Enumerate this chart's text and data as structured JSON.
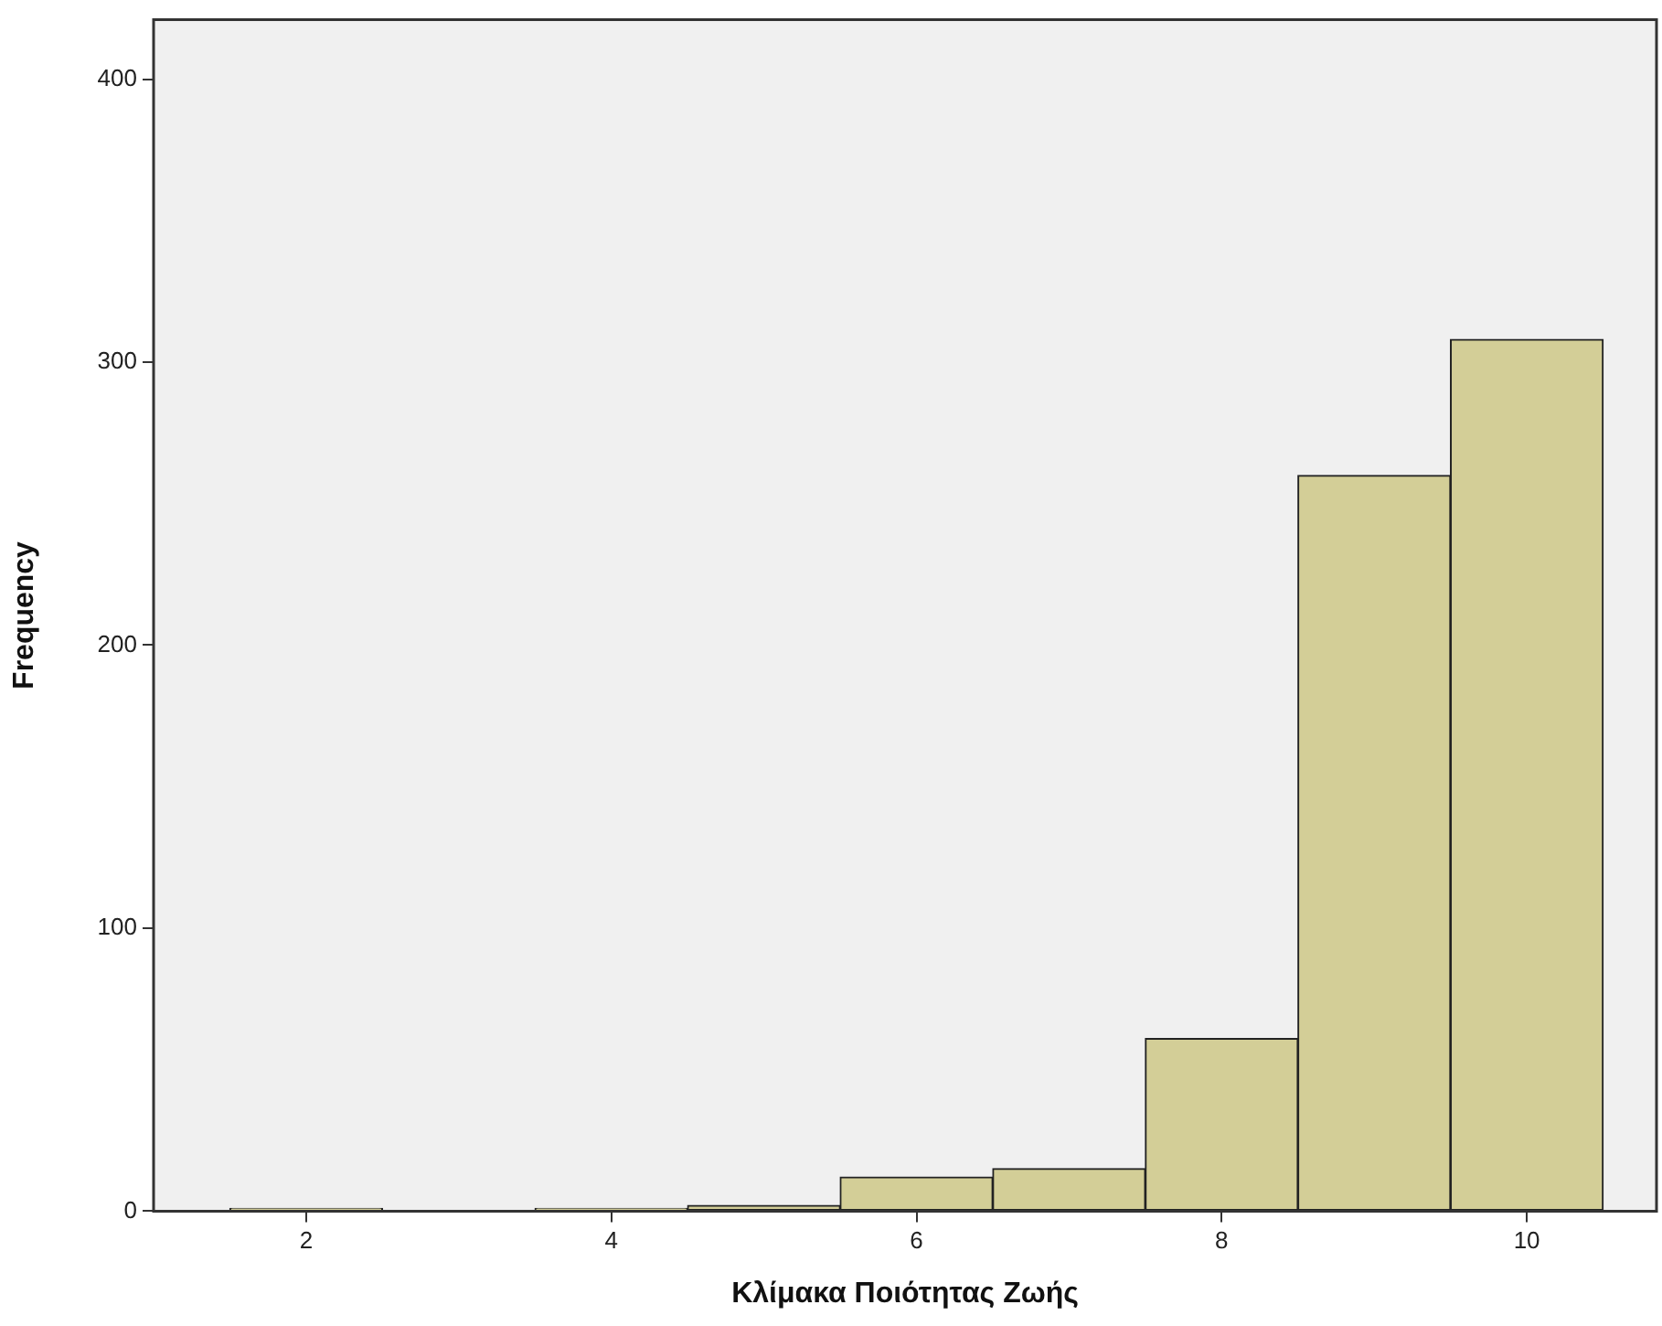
{
  "chart_data": {
    "type": "histogram",
    "xlabel": "Κλίμακα Ποιότητας Ζωής",
    "ylabel": "Frequency",
    "bins": [
      1.5,
      2.5,
      3.5,
      4.5,
      5.5,
      6.5,
      7.5,
      8.5,
      9.5,
      10.5
    ],
    "values": [
      1,
      0,
      1,
      2,
      12,
      15,
      61,
      260,
      308
    ],
    "color": "#d3ce97",
    "xlim": [
      1.0,
      10.85
    ],
    "xticks": [
      2,
      4,
      6,
      8,
      10
    ],
    "ylim": [
      0,
      421
    ],
    "yticks": [
      0,
      100,
      200,
      300,
      400
    ],
    "grid": false,
    "legend": false
  }
}
